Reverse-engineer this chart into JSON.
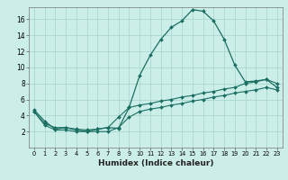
{
  "title": "",
  "xlabel": "Humidex (Indice chaleur)",
  "bg_color": "#cceee8",
  "grid_color": "#aad8d0",
  "line_color": "#1a6e62",
  "xlim": [
    -0.5,
    23.5
  ],
  "ylim": [
    0,
    17.5
  ],
  "xticks": [
    0,
    1,
    2,
    3,
    4,
    5,
    6,
    7,
    8,
    9,
    10,
    11,
    12,
    13,
    14,
    15,
    16,
    17,
    18,
    19,
    20,
    21,
    22,
    23
  ],
  "yticks": [
    2,
    4,
    6,
    8,
    10,
    12,
    14,
    16
  ],
  "curve1_x": [
    0,
    1,
    2,
    3,
    4,
    5,
    6,
    7,
    8,
    9,
    10,
    11,
    12,
    13,
    14,
    15,
    16,
    17,
    18,
    19,
    20,
    21,
    22,
    23
  ],
  "curve1_y": [
    4.7,
    3.3,
    2.3,
    2.5,
    2.2,
    2.0,
    2.3,
    2.5,
    2.4,
    5.0,
    9.0,
    11.5,
    13.5,
    15.0,
    15.8,
    17.2,
    17.0,
    15.8,
    13.5,
    10.3,
    8.2,
    8.3,
    8.5,
    7.5
  ],
  "curve2_x": [
    0,
    1,
    2,
    3,
    4,
    5,
    6,
    7,
    8,
    9,
    10,
    11,
    12,
    13,
    14,
    15,
    16,
    17,
    18,
    19,
    20,
    21,
    22,
    23
  ],
  "curve2_y": [
    4.5,
    3.0,
    2.5,
    2.5,
    2.3,
    2.2,
    2.3,
    2.5,
    3.8,
    5.0,
    5.3,
    5.5,
    5.8,
    6.0,
    6.3,
    6.5,
    6.8,
    7.0,
    7.3,
    7.5,
    8.0,
    8.2,
    8.5,
    8.0
  ],
  "curve3_x": [
    0,
    1,
    2,
    3,
    4,
    5,
    6,
    7,
    8,
    9,
    10,
    11,
    12,
    13,
    14,
    15,
    16,
    17,
    18,
    19,
    20,
    21,
    22,
    23
  ],
  "curve3_y": [
    4.5,
    2.8,
    2.2,
    2.2,
    2.0,
    2.0,
    2.0,
    2.0,
    2.5,
    3.8,
    4.5,
    4.8,
    5.0,
    5.3,
    5.5,
    5.8,
    6.0,
    6.3,
    6.5,
    6.8,
    7.0,
    7.2,
    7.5,
    7.2
  ]
}
